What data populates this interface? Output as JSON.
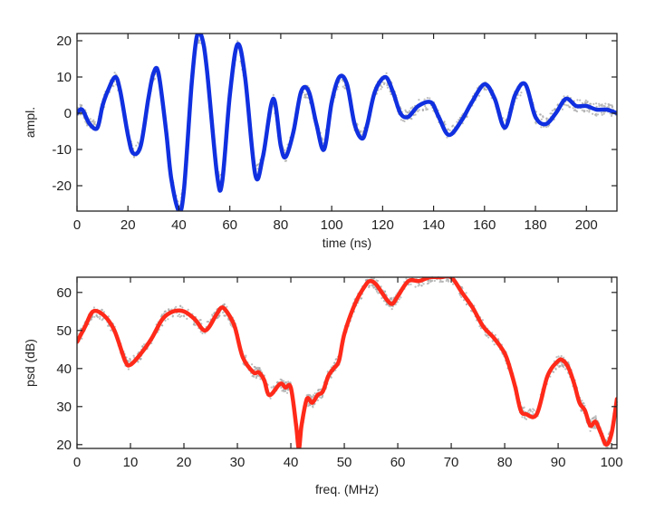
{
  "chart_data": [
    {
      "type": "line",
      "xlabel": "time (ns)",
      "ylabel": "ampl.",
      "xlim": [
        0,
        212
      ],
      "ylim": [
        -27,
        22
      ],
      "xticks": [
        0,
        20,
        40,
        60,
        80,
        100,
        120,
        140,
        160,
        180,
        200
      ],
      "yticks": [
        20,
        10,
        0,
        -10,
        -20
      ],
      "grid": false,
      "series": [
        {
          "color": "#1030e0",
          "noise_color": "#a8a8a8",
          "x": [
            0,
            2,
            5,
            8,
            10,
            12,
            15,
            17,
            20,
            22,
            25,
            28,
            30,
            32,
            35,
            37,
            40,
            42,
            45,
            47,
            49,
            51,
            55,
            57,
            60,
            63,
            66,
            70,
            73,
            77,
            80,
            82,
            85,
            88,
            91,
            94,
            97,
            100,
            103,
            106,
            109,
            112,
            114,
            117,
            121,
            124,
            127,
            130,
            134,
            139,
            142,
            146,
            151,
            155,
            160,
            164,
            168,
            172,
            176,
            180,
            184,
            188,
            192,
            196,
            200,
            204,
            208,
            212
          ],
          "y": [
            0,
            1,
            -3,
            -4,
            2,
            6,
            10,
            6,
            -6,
            -11,
            -9,
            4,
            11,
            11,
            -5,
            -18,
            -27,
            -21,
            8,
            21,
            21,
            12,
            -17,
            -19,
            5,
            19,
            10,
            -17,
            -12,
            4,
            -9,
            -12,
            -5,
            6,
            6,
            -3,
            -10,
            3,
            10,
            8,
            -3,
            -7,
            -3,
            6,
            10,
            6,
            0,
            -1,
            2,
            3,
            -1,
            -6,
            -2,
            3,
            8,
            4,
            -4,
            5,
            8,
            -1,
            -3,
            0,
            4,
            2,
            2,
            1,
            1,
            0
          ]
        }
      ]
    },
    {
      "type": "line",
      "xlabel": "freq. (MHz)",
      "ylabel": "psd (dB)",
      "xlim": [
        0,
        101
      ],
      "ylim": [
        19,
        64
      ],
      "xticks": [
        0,
        10,
        20,
        30,
        40,
        50,
        60,
        70,
        80,
        90,
        100
      ],
      "yticks": [
        60,
        50,
        40,
        30,
        20
      ],
      "grid": false,
      "series": [
        {
          "color": "#ff2a1a",
          "noise_color": "#a8a8a8",
          "x": [
            0,
            1.5,
            3,
            5,
            7,
            9,
            10,
            12,
            14,
            16,
            18,
            20,
            22,
            24,
            26,
            27,
            28,
            29.5,
            31,
            33,
            34,
            35,
            36,
            38,
            39,
            40,
            41,
            41.5,
            42,
            43,
            44,
            45,
            46,
            47,
            48,
            49,
            50,
            52,
            54,
            55,
            56,
            57,
            58,
            59,
            60,
            62,
            64,
            66,
            68,
            70,
            72,
            74,
            76,
            78,
            80,
            81,
            82,
            83,
            84,
            86,
            88,
            90,
            91,
            92,
            93,
            94,
            95,
            96,
            97,
            98,
            99,
            100,
            101
          ],
          "y": [
            47,
            51,
            55,
            54,
            50,
            42,
            41,
            44,
            48,
            53,
            55,
            55,
            53,
            50,
            54,
            56,
            55,
            51,
            43,
            39,
            39,
            37,
            33,
            36,
            35,
            35,
            25,
            19,
            25,
            32,
            31,
            33,
            34,
            38,
            40,
            42,
            49,
            57,
            62,
            63,
            62,
            60,
            58,
            57,
            59,
            63,
            63,
            64,
            64,
            64,
            60,
            56,
            51,
            48,
            44,
            40,
            35,
            29,
            28,
            28,
            38,
            42,
            42,
            40,
            36,
            31,
            29,
            25,
            26,
            23,
            20,
            23,
            32
          ]
        }
      ]
    }
  ]
}
